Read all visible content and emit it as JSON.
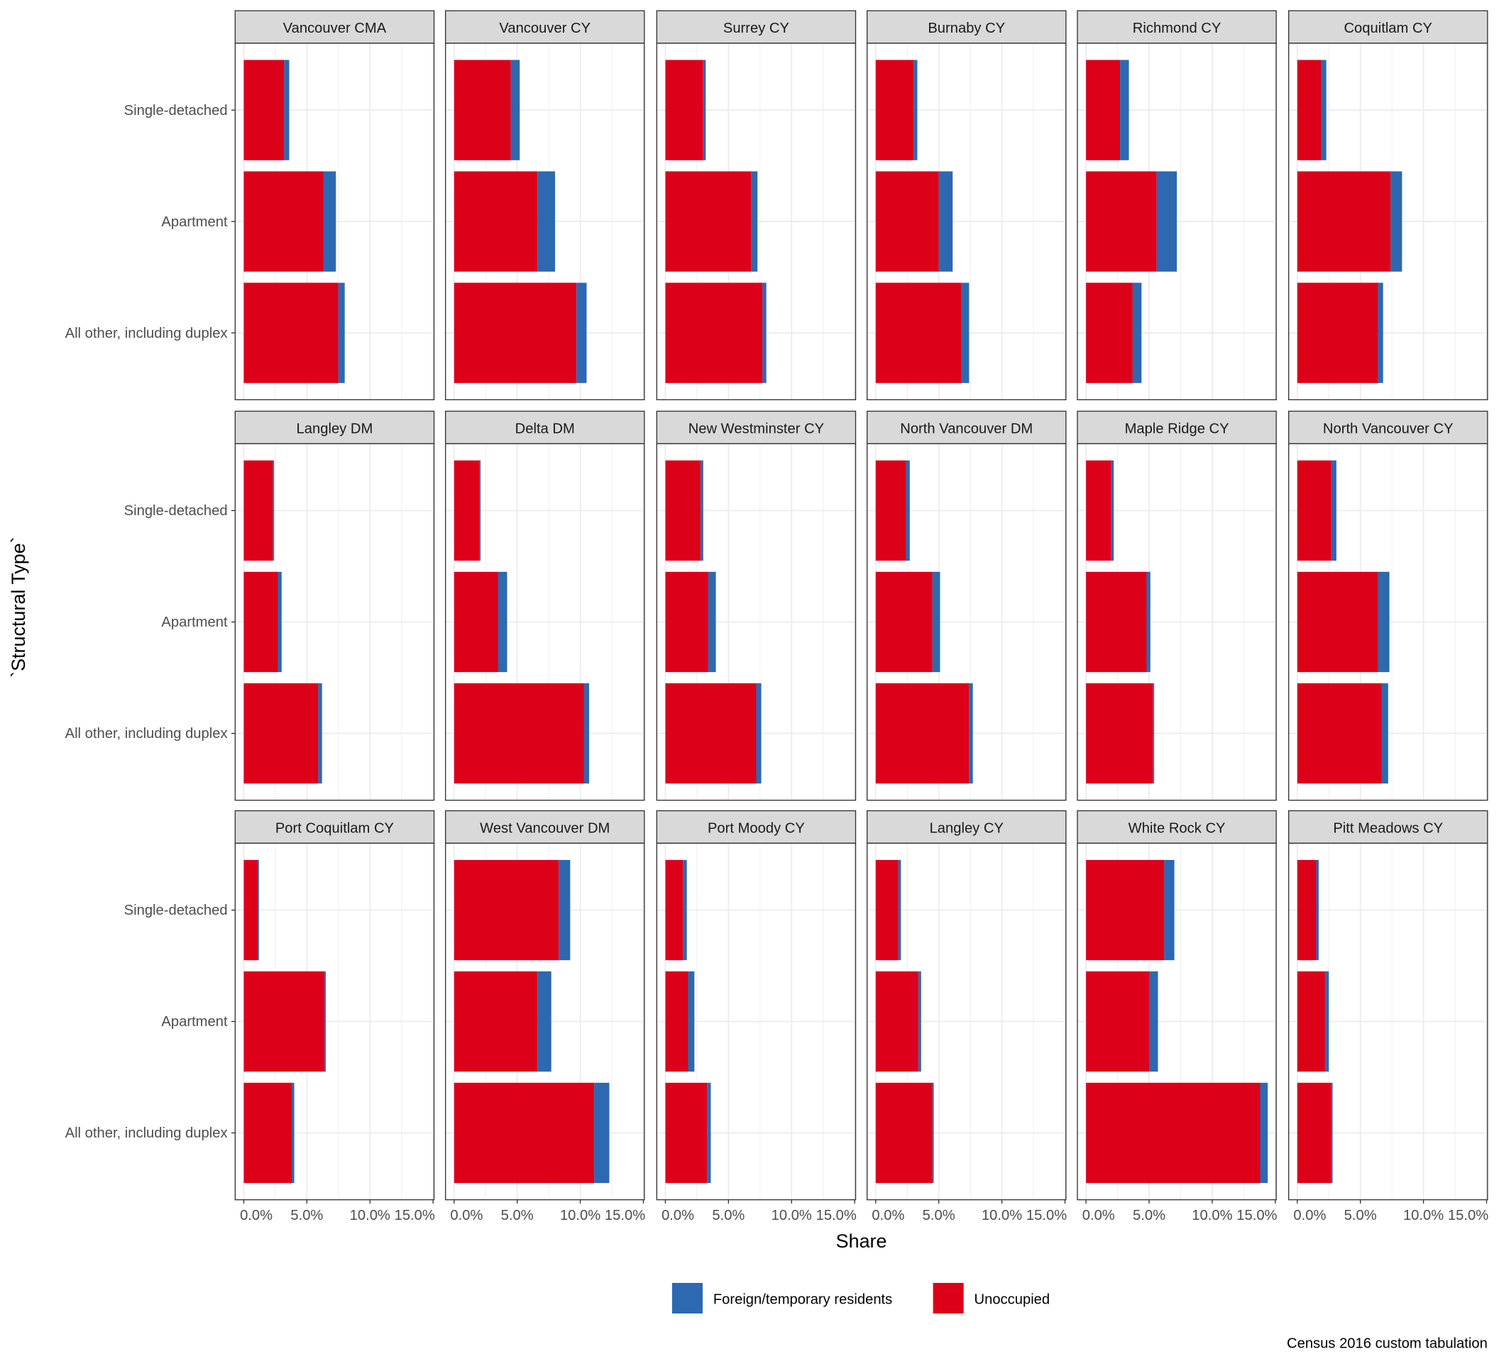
{
  "chart_data": {
    "type": "bar",
    "orientation": "horizontal",
    "stacked": true,
    "xlabel": "Share",
    "ylabel": "`Structural Type`",
    "caption": "Census 2016 custom tabulation",
    "xlim": [
      0,
      15
    ],
    "x_ticks": [
      "0.0%",
      "5.0%",
      "10.0%",
      "15.0%"
    ],
    "x_tick_values": [
      0,
      5,
      10,
      15
    ],
    "categories": [
      "Single-detached",
      "Apartment",
      "All other, including duplex"
    ],
    "legend": {
      "position": "bottom",
      "entries": [
        {
          "name": "Foreign/temporary residents",
          "color": "#2c69b0"
        },
        {
          "name": "Unoccupied",
          "color": "#dc0019"
        }
      ]
    },
    "value_units": "percent",
    "facets": [
      {
        "name": "Vancouver CMA",
        "unoccupied": [
          3.2,
          6.3,
          7.5
        ],
        "foreign": [
          0.4,
          1.0,
          0.5
        ]
      },
      {
        "name": "Vancouver CY",
        "unoccupied": [
          4.5,
          6.6,
          9.7
        ],
        "foreign": [
          0.7,
          1.4,
          0.8
        ]
      },
      {
        "name": "Surrey CY",
        "unoccupied": [
          3.0,
          6.8,
          7.7
        ],
        "foreign": [
          0.2,
          0.5,
          0.3
        ]
      },
      {
        "name": "Burnaby CY",
        "unoccupied": [
          3.0,
          5.0,
          6.8
        ],
        "foreign": [
          0.3,
          1.1,
          0.6
        ]
      },
      {
        "name": "Richmond CY",
        "unoccupied": [
          2.7,
          5.6,
          3.7
        ],
        "foreign": [
          0.7,
          1.6,
          0.7
        ]
      },
      {
        "name": "Coquitlam CY",
        "unoccupied": [
          1.9,
          7.4,
          6.4
        ],
        "foreign": [
          0.4,
          0.9,
          0.4
        ]
      },
      {
        "name": "Langley DM",
        "unoccupied": [
          2.3,
          2.7,
          5.9
        ],
        "foreign": [
          0.1,
          0.3,
          0.3
        ]
      },
      {
        "name": "Delta DM",
        "unoccupied": [
          2.0,
          3.5,
          10.3
        ],
        "foreign": [
          0.1,
          0.7,
          0.4
        ]
      },
      {
        "name": "New Westminster CY",
        "unoccupied": [
          2.8,
          3.4,
          7.2
        ],
        "foreign": [
          0.2,
          0.6,
          0.4
        ]
      },
      {
        "name": "North Vancouver DM",
        "unoccupied": [
          2.4,
          4.5,
          7.4
        ],
        "foreign": [
          0.3,
          0.6,
          0.3
        ]
      },
      {
        "name": "Maple Ridge CY",
        "unoccupied": [
          2.0,
          4.8,
          5.3
        ],
        "foreign": [
          0.2,
          0.3,
          0.1
        ]
      },
      {
        "name": "North Vancouver CY",
        "unoccupied": [
          2.7,
          6.4,
          6.7
        ],
        "foreign": [
          0.4,
          0.9,
          0.5
        ]
      },
      {
        "name": "Port Coquitlam CY",
        "unoccupied": [
          1.1,
          6.4,
          3.8
        ],
        "foreign": [
          0.1,
          0.1,
          0.2
        ]
      },
      {
        "name": "West Vancouver DM",
        "unoccupied": [
          8.3,
          6.6,
          11.1
        ],
        "foreign": [
          0.9,
          1.1,
          1.2
        ]
      },
      {
        "name": "Port Moody CY",
        "unoccupied": [
          1.4,
          1.8,
          3.3
        ],
        "foreign": [
          0.3,
          0.5,
          0.3
        ]
      },
      {
        "name": "Langley CY",
        "unoccupied": [
          1.8,
          3.4,
          4.5
        ],
        "foreign": [
          0.2,
          0.2,
          0.1
        ]
      },
      {
        "name": "White Rock CY",
        "unoccupied": [
          6.2,
          5.0,
          13.8
        ],
        "foreign": [
          0.8,
          0.7,
          0.6
        ]
      },
      {
        "name": "Pitt Meadows CY",
        "unoccupied": [
          1.5,
          2.2,
          2.7
        ],
        "foreign": [
          0.2,
          0.3,
          0.1
        ]
      }
    ]
  }
}
